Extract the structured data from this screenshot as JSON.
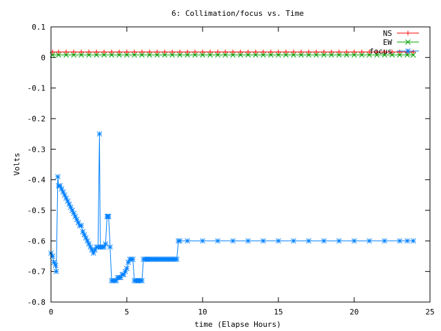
{
  "chart_data": {
    "type": "line",
    "title": "6: Collimation/focus vs. Time",
    "xlabel": "time (Elapse Hours)",
    "ylabel": "Volts",
    "xlim": [
      0,
      25
    ],
    "ylim": [
      -0.8,
      0.1
    ],
    "xticks": [
      0,
      5,
      10,
      15,
      20,
      25
    ],
    "xtick_labels": [
      "0",
      "5",
      "10",
      "15",
      "20",
      "25"
    ],
    "yticks": [
      0.1,
      0,
      -0.1,
      -0.2,
      -0.3,
      -0.4,
      -0.5,
      -0.6,
      -0.7,
      -0.8
    ],
    "ytick_labels": [
      "0.1",
      "0",
      "-0.1",
      "-0.2",
      "-0.3",
      "-0.4",
      "-0.5",
      "-0.6",
      "-0.7",
      "-0.8"
    ],
    "grid": false,
    "legend_position": "top-right",
    "series": [
      {
        "name": "NS",
        "color": "#ff0000",
        "marker": "plus",
        "x": [
          0.1,
          0.5,
          1,
          1.5,
          2,
          2.5,
          3,
          3.5,
          4,
          4.5,
          5,
          5.5,
          6,
          6.5,
          7,
          7.5,
          8,
          8.5,
          9,
          9.5,
          10,
          10.5,
          11,
          11.5,
          12,
          12.5,
          13,
          13.5,
          14,
          14.5,
          15,
          15.5,
          16,
          16.5,
          17,
          17.5,
          18,
          18.5,
          19,
          19.5,
          20,
          20.5,
          21,
          21.5,
          22,
          22.5,
          23,
          23.5,
          23.9
        ],
        "y": [
          0.018,
          0.018,
          0.018,
          0.018,
          0.018,
          0.018,
          0.018,
          0.018,
          0.018,
          0.018,
          0.018,
          0.018,
          0.018,
          0.018,
          0.018,
          0.018,
          0.018,
          0.018,
          0.018,
          0.018,
          0.018,
          0.018,
          0.018,
          0.018,
          0.018,
          0.018,
          0.018,
          0.018,
          0.018,
          0.018,
          0.018,
          0.018,
          0.018,
          0.018,
          0.018,
          0.018,
          0.018,
          0.018,
          0.018,
          0.018,
          0.018,
          0.018,
          0.018,
          0.018,
          0.018,
          0.018,
          0.018,
          0.018,
          0.018
        ]
      },
      {
        "name": "EW",
        "color": "#00a000",
        "marker": "cross",
        "x": [
          0.1,
          0.5,
          1,
          1.5,
          2,
          2.5,
          3,
          3.5,
          4,
          4.5,
          5,
          5.5,
          6,
          6.5,
          7,
          7.5,
          8,
          8.5,
          9,
          9.5,
          10,
          10.5,
          11,
          11.5,
          12,
          12.5,
          13,
          13.5,
          14,
          14.5,
          15,
          15.5,
          16,
          16.5,
          17,
          17.5,
          18,
          18.5,
          19,
          19.5,
          20,
          20.5,
          21,
          21.5,
          22,
          22.5,
          23,
          23.5,
          23.9
        ],
        "y": [
          0.008,
          0.008,
          0.008,
          0.008,
          0.008,
          0.008,
          0.008,
          0.008,
          0.008,
          0.008,
          0.008,
          0.008,
          0.008,
          0.008,
          0.008,
          0.008,
          0.008,
          0.008,
          0.008,
          0.008,
          0.008,
          0.008,
          0.008,
          0.008,
          0.008,
          0.008,
          0.008,
          0.008,
          0.008,
          0.008,
          0.008,
          0.008,
          0.008,
          0.008,
          0.008,
          0.008,
          0.008,
          0.008,
          0.008,
          0.008,
          0.008,
          0.008,
          0.008,
          0.008,
          0.008,
          0.008,
          0.008,
          0.008,
          0.008
        ]
      },
      {
        "name": "focus",
        "color": "#0080ff",
        "marker": "star",
        "x": [
          0.0,
          0.1,
          0.2,
          0.3,
          0.35,
          0.45,
          0.5,
          0.6,
          0.7,
          0.8,
          0.9,
          1.0,
          1.1,
          1.2,
          1.3,
          1.4,
          1.5,
          1.6,
          1.7,
          1.8,
          1.9,
          2.0,
          2.1,
          2.2,
          2.3,
          2.4,
          2.5,
          2.6,
          2.7,
          2.8,
          2.9,
          3.0,
          3.1,
          3.2,
          3.25,
          3.3,
          3.4,
          3.5,
          3.6,
          3.7,
          3.75,
          3.8,
          3.9,
          4.0,
          4.1,
          4.2,
          4.3,
          4.4,
          4.5,
          4.6,
          4.7,
          4.8,
          4.9,
          5.0,
          5.1,
          5.2,
          5.3,
          5.4,
          5.5,
          5.6,
          5.7,
          5.75,
          5.8,
          5.9,
          6.0,
          6.1,
          6.2,
          6.3,
          6.35,
          6.4,
          6.5,
          6.6,
          6.7,
          6.8,
          6.9,
          7.0,
          7.1,
          7.2,
          7.3,
          7.4,
          7.5,
          7.6,
          7.7,
          7.8,
          7.9,
          8.0,
          8.1,
          8.2,
          8.3,
          8.4,
          8.5,
          9.0,
          10.0,
          11.0,
          12.0,
          13.0,
          14.0,
          15.0,
          16.0,
          17.0,
          18.0,
          19.0,
          20.0,
          21.0,
          22.0,
          23.0,
          23.5,
          23.9
        ],
        "y": [
          -0.64,
          -0.65,
          -0.67,
          -0.68,
          -0.7,
          -0.39,
          -0.42,
          -0.42,
          -0.43,
          -0.44,
          -0.45,
          -0.46,
          -0.47,
          -0.48,
          -0.49,
          -0.5,
          -0.51,
          -0.52,
          -0.53,
          -0.54,
          -0.55,
          -0.55,
          -0.57,
          -0.58,
          -0.59,
          -0.6,
          -0.61,
          -0.62,
          -0.63,
          -0.64,
          -0.63,
          -0.62,
          -0.62,
          -0.25,
          -0.62,
          -0.62,
          -0.62,
          -0.62,
          -0.61,
          -0.52,
          -0.52,
          -0.52,
          -0.62,
          -0.73,
          -0.73,
          -0.73,
          -0.73,
          -0.72,
          -0.72,
          -0.72,
          -0.71,
          -0.71,
          -0.7,
          -0.69,
          -0.67,
          -0.66,
          -0.66,
          -0.66,
          -0.73,
          -0.73,
          -0.73,
          -0.73,
          -0.73,
          -0.73,
          -0.73,
          -0.66,
          -0.66,
          -0.66,
          -0.66,
          -0.66,
          -0.66,
          -0.66,
          -0.66,
          -0.66,
          -0.66,
          -0.66,
          -0.66,
          -0.66,
          -0.66,
          -0.66,
          -0.66,
          -0.66,
          -0.66,
          -0.66,
          -0.66,
          -0.66,
          -0.66,
          -0.66,
          -0.66,
          -0.6,
          -0.6,
          -0.6,
          -0.6,
          -0.6,
          -0.6,
          -0.6,
          -0.6,
          -0.6,
          -0.6,
          -0.6,
          -0.6,
          -0.6,
          -0.6,
          -0.6,
          -0.6,
          -0.6,
          -0.6,
          -0.6
        ]
      }
    ]
  }
}
